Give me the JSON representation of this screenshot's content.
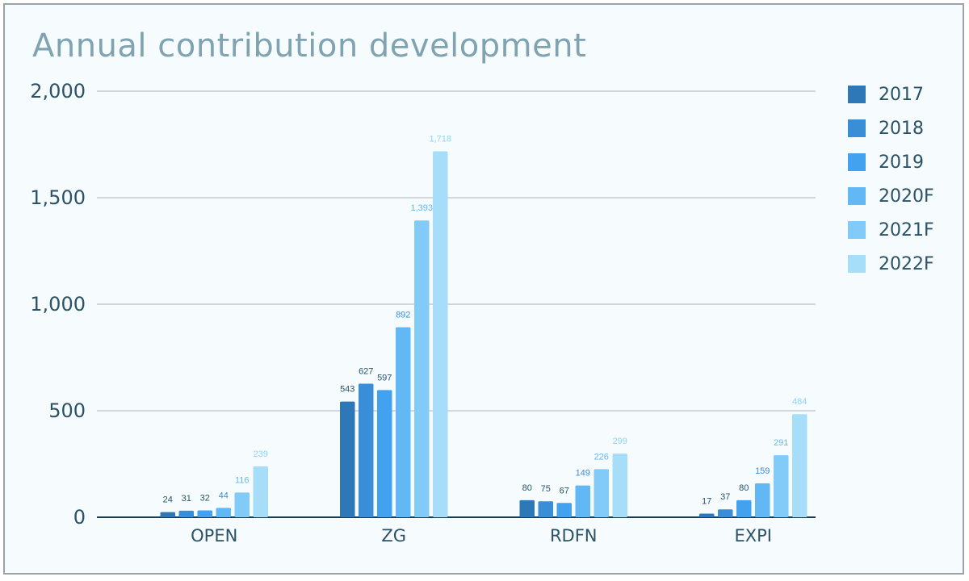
{
  "chart_data": {
    "type": "bar",
    "title": "Annual contribution development",
    "categories": [
      "OPEN",
      "ZG",
      "RDFN",
      "EXPI"
    ],
    "series": [
      {
        "name": "2017",
        "color": "#2e78b7",
        "values": [
          24,
          543,
          80,
          17
        ]
      },
      {
        "name": "2018",
        "color": "#3a8ed8",
        "values": [
          31,
          627,
          75,
          37
        ]
      },
      {
        "name": "2019",
        "color": "#43a2ef",
        "values": [
          32,
          597,
          67,
          80
        ]
      },
      {
        "name": "2020F",
        "color": "#62b8f5",
        "values": [
          44,
          892,
          149,
          159
        ]
      },
      {
        "name": "2021F",
        "color": "#82cbf8",
        "values": [
          116,
          1393,
          226,
          291
        ]
      },
      {
        "name": "2022F",
        "color": "#a6def9",
        "values": [
          239,
          1718,
          299,
          484
        ]
      }
    ],
    "data_labels": [
      [
        "24",
        "31",
        "32",
        "44",
        "116",
        "239"
      ],
      [
        "543",
        "627",
        "597",
        "892",
        "1,393",
        "1,718"
      ],
      [
        "80",
        "75",
        "67",
        "149",
        "226",
        "299"
      ],
      [
        "17",
        "37",
        "80",
        "159",
        "291",
        "484"
      ]
    ],
    "yticks": [
      "0",
      "500",
      "1,000",
      "1,500",
      "2,000"
    ],
    "ytick_values": [
      0,
      500,
      1000,
      1500,
      2000
    ],
    "ylim": [
      0,
      2000
    ],
    "xlabel": "",
    "ylabel": "",
    "grid": true,
    "legend": "right"
  }
}
